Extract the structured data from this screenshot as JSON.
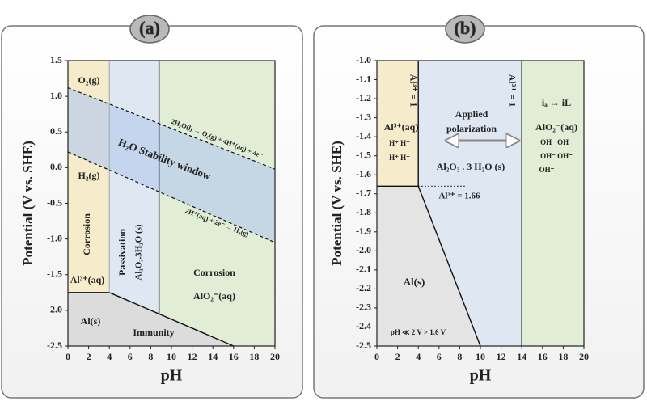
{
  "chart_data": [
    {
      "type": "region",
      "title": "(a)",
      "xlabel": "pH",
      "ylabel": "Potential (V vs. SHE)",
      "xlim": [
        0,
        20
      ],
      "ylim": [
        -2.5,
        1.5
      ],
      "xticks": [
        0,
        2,
        4,
        6,
        8,
        10,
        12,
        14,
        16,
        18,
        20
      ],
      "yticks": [
        1.5,
        {
          "value": 1,
          "label": "1.0"
        },
        0.5,
        {
          "value": 0,
          "label": "0.0"
        },
        -0.5,
        {
          "value": -1,
          "label": "-1.0"
        },
        -1.5,
        {
          "value": -2,
          "label": "-2.0"
        },
        -2.5
      ],
      "bands": [
        {
          "xlim": [
            0,
            4
          ],
          "color": "#f6eccb"
        },
        {
          "xlim": [
            4,
            8.8
          ],
          "color": "#dfe7f3"
        },
        {
          "xlim": [
            8.8,
            20
          ],
          "color": "#e2edd6"
        }
      ],
      "lower_region_color": "#dcdcdc",
      "window_color": "rgba(185,205,235,0.7)",
      "boundaries": [
        {
          "x": [
            0,
            4
          ],
          "y": [
            -1.75,
            -1.75
          ],
          "style": "solid",
          "lower_edge": true
        },
        {
          "x": [
            4,
            16
          ],
          "y": [
            -1.75,
            -2.5
          ],
          "style": "solid",
          "lower_edge": true
        },
        {
          "x": [
            4,
            4
          ],
          "y": [
            -1.75,
            1.5
          ],
          "style": "faint"
        },
        {
          "x": [
            8.8,
            8.8
          ],
          "y": [
            1.5,
            -2.05
          ],
          "style": "solid"
        },
        {
          "x": [
            0,
            20
          ],
          "y": [
            1.12,
            -0.02
          ],
          "style": "dashed"
        },
        {
          "x": [
            0,
            20
          ],
          "y": [
            0.22,
            -1.05
          ],
          "style": "dashed"
        }
      ],
      "annotations": [
        "O₂(g)",
        "2H₂O(l) → O₂(g) + 4H⁺(aq) + 4e⁻",
        "H₂O Stability window",
        "H₂(g)",
        "2H⁺(aq) + 2e⁻ → H₂(g)",
        "Corrosion",
        "Passivation",
        "Al₂O₃.3H₂O (s)",
        "Corrosion",
        "AlO₂⁻(aq)",
        "Al³⁺(aq)",
        "Al(s)",
        "Immunity"
      ]
    },
    {
      "type": "region",
      "title": "(b)",
      "xlabel": "pH",
      "ylabel": "Potential (V vs. SHE)",
      "xlim": [
        0,
        20
      ],
      "ylim": [
        -2.5,
        -1.0
      ],
      "xticks": [
        0,
        2,
        4,
        6,
        8,
        10,
        12,
        14,
        16,
        18,
        20
      ],
      "yticks": [
        {
          "value": -1,
          "label": "-1.0"
        },
        -1.1,
        -1.2,
        -1.3,
        -1.4,
        -1.5,
        -1.6,
        -1.7,
        -1.8,
        -1.9,
        {
          "value": -2,
          "label": "-2.0"
        },
        -2.1,
        -2.2,
        -2.3,
        -2.4,
        -2.5
      ],
      "bands": [
        {
          "xlim": [
            0,
            4
          ],
          "color": "#f6eccb"
        },
        {
          "xlim": [
            4,
            14
          ],
          "color": "#dfe7f3"
        },
        {
          "xlim": [
            14,
            20
          ],
          "color": "#e2edd6"
        }
      ],
      "lower_region_color": "#e4e4e4",
      "boundaries": [
        {
          "x": [
            4,
            4
          ],
          "y": [
            -1.0,
            -1.66
          ],
          "style": "solid"
        },
        {
          "x": [
            0,
            4
          ],
          "y": [
            -1.66,
            -1.66
          ],
          "style": "solid",
          "lower_edge": true
        },
        {
          "x": [
            4,
            10
          ],
          "y": [
            -1.66,
            -2.5
          ],
          "style": "solid",
          "lower_edge": true
        },
        {
          "x": [
            14,
            14
          ],
          "y": [
            -1.0,
            -2.5
          ],
          "style": "solid"
        },
        {
          "x": [
            4,
            8.7
          ],
          "y": [
            -1.66,
            -1.66
          ],
          "style": "dotted"
        }
      ],
      "annotations": [
        "Al³⁺ = 1",
        "Al³⁺(aq)",
        "H⁺  H⁺",
        "H⁺  H⁺",
        "Applied",
        "polarization",
        "Al₂O₃ . 3 H₂O (s)",
        "Al³⁺ = 1.66",
        "Al³⁺ = 1",
        "iₐ → iL",
        "AlO₂⁻(aq)",
        "OH⁻  OH⁻",
        "OH⁻  OH⁻",
        "OH⁻",
        "Al(s)",
        "pH ≪ 2 V > 1.6 V"
      ]
    }
  ]
}
